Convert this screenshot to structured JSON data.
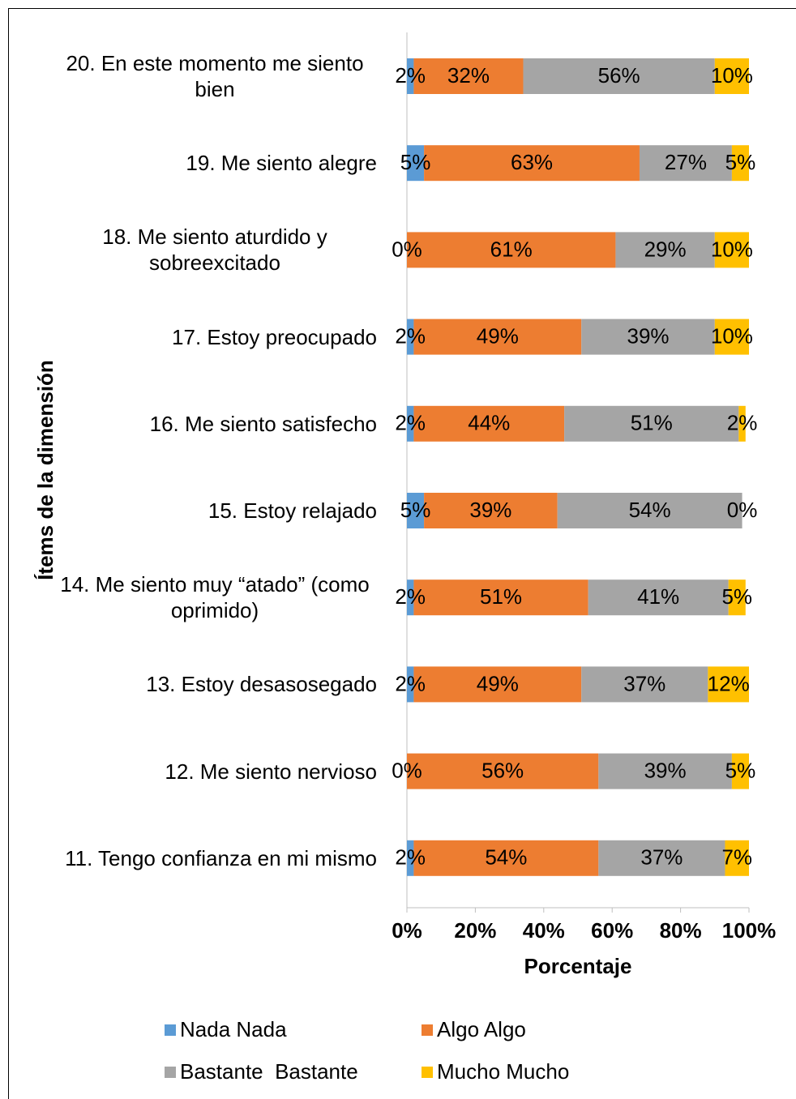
{
  "chart_data": {
    "type": "stacked_barh",
    "x_label": "Porcentaje",
    "y_label": "Ítems de la dimensión",
    "categories": [
      "20. En este momento me siento bien",
      "19. Me siento alegre",
      "18. Me siento aturdido y sobreexcitado",
      "17. Estoy preocupado",
      "16. Me siento satisfecho",
      "15. Estoy relajado",
      "14. Me siento muy “atado” (como oprimido)",
      "13. Estoy desasosegado",
      "12. Me siento nervioso",
      "11. Tengo confianza en mi mismo"
    ],
    "series": [
      {
        "name": "Nada Nada",
        "color": "#5b9bd5",
        "values": [
          2,
          5,
          0,
          2,
          2,
          5,
          2,
          2,
          0,
          2
        ],
        "value_labels": [
          "2%",
          "5%",
          "0%",
          "2%",
          "2%",
          "5%",
          "2%",
          "2%",
          "0%",
          "2%"
        ]
      },
      {
        "name": "Algo Algo",
        "color": "#ed7d31",
        "values": [
          32,
          63,
          61,
          49,
          44,
          39,
          51,
          49,
          56,
          54
        ],
        "value_labels": [
          "32%",
          "63%",
          "61%",
          "49%",
          "44%",
          "39%",
          "51%",
          "49%",
          "56%",
          "54%"
        ]
      },
      {
        "name": "Bastante  Bastante",
        "color": "#a5a5a5",
        "values": [
          56,
          27,
          29,
          39,
          51,
          54,
          41,
          37,
          39,
          37
        ],
        "value_labels": [
          "56%",
          "27%",
          "29%",
          "39%",
          "51%",
          "54%",
          "41%",
          "37%",
          "39%",
          "37%"
        ]
      },
      {
        "name": "Mucho Mucho",
        "color": "#ffc000",
        "values": [
          10,
          5,
          10,
          10,
          2,
          0,
          5,
          12,
          5,
          7
        ],
        "value_labels": [
          "10%",
          "5%",
          "10%",
          "10%",
          "2%",
          "0%",
          "5%",
          "12%",
          "5%",
          "7%"
        ]
      }
    ],
    "xlim": [
      0,
      100
    ],
    "xticks": [
      {
        "value": 0,
        "label": "0%"
      },
      {
        "value": 20,
        "label": "20%"
      },
      {
        "value": 40,
        "label": "40%"
      },
      {
        "value": 60,
        "label": "60%"
      },
      {
        "value": 80,
        "label": "80%"
      },
      {
        "value": 100,
        "label": "100%"
      }
    ],
    "grid": false,
    "legend": "bottom"
  }
}
